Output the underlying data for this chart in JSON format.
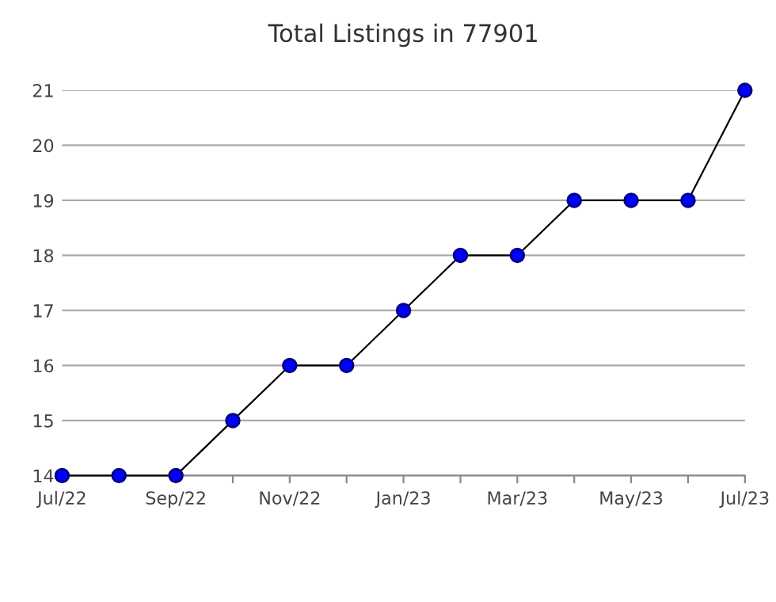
{
  "chart_data": {
    "type": "line",
    "title": "Total Listings in 77901",
    "categories": [
      "Jul/22",
      null,
      "Sep/22",
      null,
      "Nov/22",
      null,
      "Jan/23",
      null,
      "Mar/23",
      null,
      "May/23",
      null,
      "Jul/23"
    ],
    "series": [
      {
        "color": "#0000ff",
        "values": [
          14,
          14,
          14,
          15,
          16,
          16,
          17,
          18,
          18,
          19,
          19,
          19,
          21
        ]
      }
    ],
    "ylim": [
      14,
      21
    ],
    "yticks": [
      14,
      15,
      16,
      17,
      18,
      19,
      20,
      21
    ],
    "grid": "y",
    "marker": "circle",
    "line_style": "solid"
  }
}
